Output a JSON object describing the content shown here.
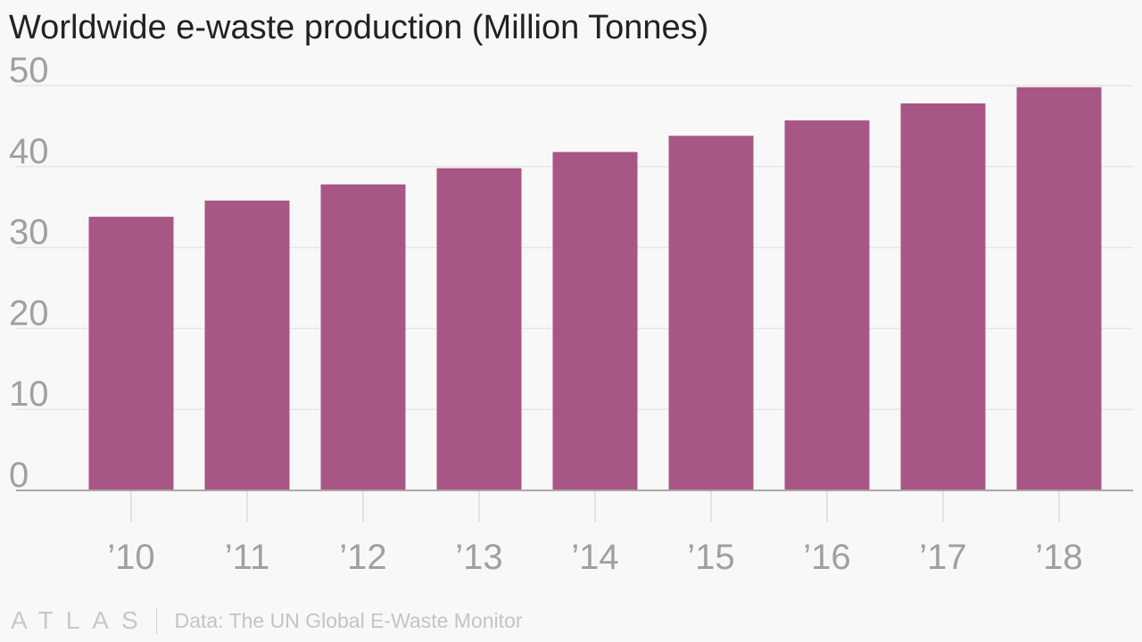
{
  "header": {
    "title": "Worldwide e-waste production (Million Tonnes)"
  },
  "chart_data": {
    "type": "bar",
    "title": "Worldwide e-waste production (Million Tonnes)",
    "xlabel": "",
    "ylabel": "",
    "categories": [
      "’10",
      "’11",
      "’12",
      "’13",
      "’14",
      "’15",
      "’16",
      "’17",
      "’18"
    ],
    "values": [
      33.8,
      35.8,
      37.8,
      39.8,
      41.8,
      43.8,
      45.7,
      47.8,
      49.8
    ],
    "ylim": [
      0,
      50
    ],
    "yticks": [
      0,
      10,
      20,
      30,
      40,
      50
    ],
    "grid": true,
    "legend": "none",
    "colors": {
      "bar": "#a85784",
      "grid": "#e6e6e6",
      "axis": "#a8a8a8",
      "tick_label": "#a0a0a0"
    }
  },
  "footer": {
    "brand": "ATLAS",
    "source": "Data: The UN Global E-Waste Monitor"
  }
}
